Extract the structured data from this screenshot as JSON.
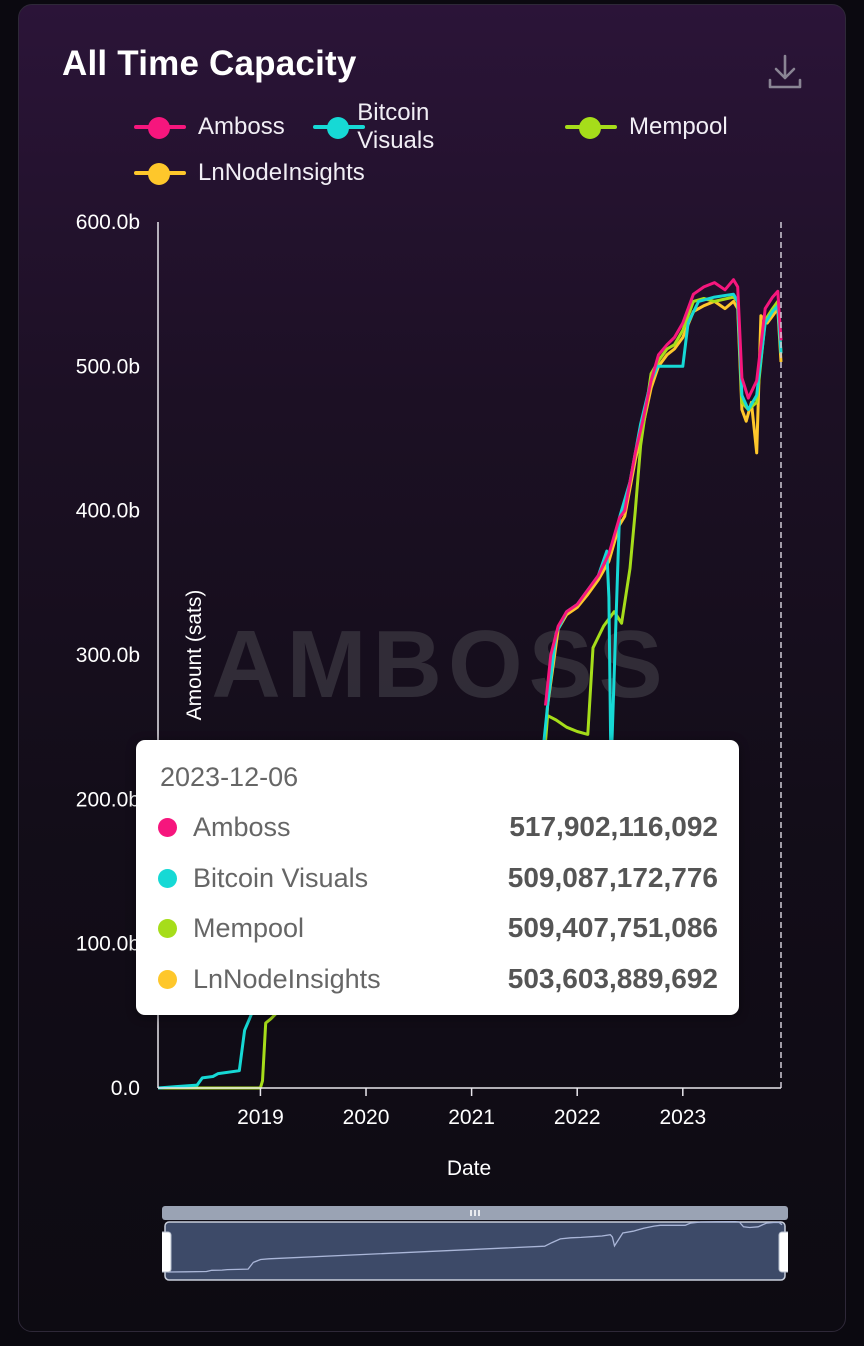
{
  "title": "All Time Capacity",
  "colors": {
    "amboss": "#f6167d",
    "bitcoin_visuals": "#16d9d5",
    "mempool": "#a6dd1a",
    "lnnodeinsights": "#fec72b"
  },
  "icons": {
    "download": "download-icon",
    "zoom_grip": "grip-lines-icon"
  },
  "watermark": "AMBOSS",
  "tooltip": {
    "date": "2023-12-06",
    "rows": [
      {
        "name": "Amboss",
        "value": "517,902,116,092",
        "color": "#f6167d"
      },
      {
        "name": "Bitcoin Visuals",
        "value": "509,087,172,776",
        "color": "#16d9d5"
      },
      {
        "name": "Mempool",
        "value": "509,407,751,086",
        "color": "#a6dd1a"
      },
      {
        "name": "LnNodeInsights",
        "value": "503,603,889,692",
        "color": "#fec72b"
      }
    ]
  },
  "chart_data": {
    "type": "line",
    "title": "All Time Capacity",
    "xlabel": "Date",
    "ylabel": "Amount (sats)",
    "ylim": [
      0,
      600
    ],
    "y_unit": "b",
    "yticks": [
      "0.0",
      "100.0b",
      "200.0b",
      "300.0b",
      "400.0b",
      "500.0b",
      "600.0b"
    ],
    "xticks": [
      "2019",
      "2020",
      "2021",
      "2022",
      "2023"
    ],
    "xlim": [
      2018.03,
      2023.93
    ],
    "legend": "top",
    "grid": false,
    "crosshair_x": 2023.93,
    "series": [
      {
        "name": "Amboss",
        "color": "#f6167d",
        "points": [
          [
            2021.7,
            265
          ],
          [
            2021.75,
            300
          ],
          [
            2021.82,
            320
          ],
          [
            2021.9,
            330
          ],
          [
            2022.0,
            335
          ],
          [
            2022.1,
            345
          ],
          [
            2022.2,
            355
          ],
          [
            2022.3,
            370
          ],
          [
            2022.4,
            395
          ],
          [
            2022.45,
            400
          ],
          [
            2022.55,
            440
          ],
          [
            2022.62,
            462
          ],
          [
            2022.7,
            490
          ],
          [
            2022.77,
            508
          ],
          [
            2022.85,
            515
          ],
          [
            2022.92,
            520
          ],
          [
            2023.0,
            530
          ],
          [
            2023.1,
            550
          ],
          [
            2023.2,
            555
          ],
          [
            2023.3,
            558
          ],
          [
            2023.4,
            553
          ],
          [
            2023.48,
            560
          ],
          [
            2023.52,
            555
          ],
          [
            2023.56,
            492
          ],
          [
            2023.62,
            478
          ],
          [
            2023.7,
            490
          ],
          [
            2023.78,
            540
          ],
          [
            2023.85,
            548
          ],
          [
            2023.9,
            552
          ],
          [
            2023.93,
            518
          ]
        ]
      },
      {
        "name": "Bitcoin Visuals",
        "color": "#16d9d5",
        "points": [
          [
            2018.03,
            0
          ],
          [
            2018.2,
            1
          ],
          [
            2018.4,
            2
          ],
          [
            2018.45,
            7
          ],
          [
            2018.55,
            8
          ],
          [
            2018.6,
            10
          ],
          [
            2018.8,
            12
          ],
          [
            2018.85,
            40
          ],
          [
            2018.92,
            52
          ],
          [
            2019.0,
            55
          ],
          [
            2021.65,
            215
          ],
          [
            2021.72,
            265
          ],
          [
            2021.8,
            315
          ],
          [
            2021.9,
            330
          ],
          [
            2022.0,
            335
          ],
          [
            2022.1,
            345
          ],
          [
            2022.2,
            355
          ],
          [
            2022.28,
            372
          ],
          [
            2022.3,
            340
          ],
          [
            2022.32,
            220
          ],
          [
            2022.4,
            395
          ],
          [
            2022.5,
            420
          ],
          [
            2022.6,
            460
          ],
          [
            2022.7,
            490
          ],
          [
            2022.76,
            500
          ],
          [
            2022.8,
            500
          ],
          [
            2023.0,
            500
          ],
          [
            2023.05,
            530
          ],
          [
            2023.15,
            545
          ],
          [
            2023.3,
            548
          ],
          [
            2023.48,
            550
          ],
          [
            2023.52,
            545
          ],
          [
            2023.56,
            480
          ],
          [
            2023.62,
            470
          ],
          [
            2023.7,
            480
          ],
          [
            2023.78,
            530
          ],
          [
            2023.85,
            538
          ],
          [
            2023.9,
            542
          ],
          [
            2023.93,
            509
          ]
        ]
      },
      {
        "name": "Mempool",
        "color": "#a6dd1a",
        "points": [
          [
            2018.03,
            0
          ],
          [
            2019.0,
            0
          ],
          [
            2019.02,
            5
          ],
          [
            2019.05,
            45
          ],
          [
            2019.1,
            48
          ],
          [
            2021.7,
            240
          ],
          [
            2021.72,
            258
          ],
          [
            2021.8,
            255
          ],
          [
            2021.9,
            250
          ],
          [
            2022.0,
            247
          ],
          [
            2022.1,
            245
          ],
          [
            2022.15,
            305
          ],
          [
            2022.25,
            320
          ],
          [
            2022.35,
            330
          ],
          [
            2022.42,
            322
          ],
          [
            2022.5,
            360
          ],
          [
            2022.55,
            400
          ],
          [
            2022.6,
            445
          ],
          [
            2022.65,
            470
          ],
          [
            2022.7,
            495
          ],
          [
            2022.78,
            505
          ],
          [
            2022.85,
            512
          ],
          [
            2022.92,
            515
          ],
          [
            2023.0,
            525
          ],
          [
            2023.1,
            545
          ],
          [
            2023.2,
            547
          ],
          [
            2023.3,
            545
          ],
          [
            2023.48,
            548
          ],
          [
            2023.52,
            545
          ],
          [
            2023.56,
            475
          ],
          [
            2023.62,
            470
          ],
          [
            2023.7,
            475
          ],
          [
            2023.78,
            532
          ],
          [
            2023.85,
            540
          ],
          [
            2023.9,
            545
          ],
          [
            2023.93,
            509
          ]
        ]
      },
      {
        "name": "LnNodeInsights",
        "color": "#fec72b",
        "points": [
          [
            2021.68,
            220
          ],
          [
            2021.72,
            265
          ],
          [
            2021.82,
            318
          ],
          [
            2021.9,
            328
          ],
          [
            2022.0,
            333
          ],
          [
            2022.1,
            342
          ],
          [
            2022.2,
            352
          ],
          [
            2022.3,
            365
          ],
          [
            2022.4,
            390
          ],
          [
            2022.45,
            396
          ],
          [
            2022.55,
            435
          ],
          [
            2022.62,
            458
          ],
          [
            2022.7,
            485
          ],
          [
            2022.77,
            500
          ],
          [
            2022.85,
            508
          ],
          [
            2022.92,
            512
          ],
          [
            2023.0,
            520
          ],
          [
            2023.1,
            538
          ],
          [
            2023.2,
            542
          ],
          [
            2023.3,
            545
          ],
          [
            2023.4,
            540
          ],
          [
            2023.48,
            545
          ],
          [
            2023.52,
            540
          ],
          [
            2023.56,
            470
          ],
          [
            2023.6,
            462
          ],
          [
            2023.65,
            475
          ],
          [
            2023.7,
            440
          ],
          [
            2023.74,
            535
          ],
          [
            2023.8,
            530
          ],
          [
            2023.85,
            535
          ],
          [
            2023.9,
            540
          ],
          [
            2023.93,
            503
          ]
        ]
      }
    ]
  }
}
